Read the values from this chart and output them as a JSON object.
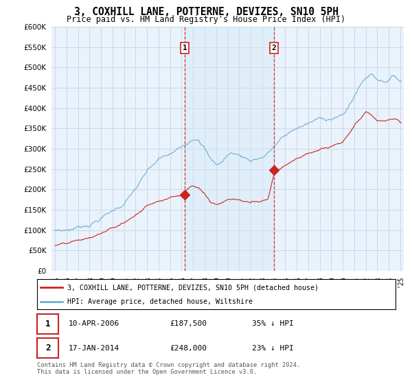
{
  "title": "3, COXHILL LANE, POTTERNE, DEVIZES, SN10 5PH",
  "subtitle": "Price paid vs. HM Land Registry's House Price Index (HPI)",
  "legend_line1": "3, COXHILL LANE, POTTERNE, DEVIZES, SN10 5PH (detached house)",
  "legend_line2": "HPI: Average price, detached house, Wiltshire",
  "sale1_date": "10-APR-2006",
  "sale1_price": "£187,500",
  "sale1_hpi": "35% ↓ HPI",
  "sale1_year": 2006.27,
  "sale1_value": 187500,
  "sale2_date": "17-JAN-2014",
  "sale2_price": "£248,000",
  "sale2_hpi": "23% ↓ HPI",
  "sale2_year": 2014.04,
  "sale2_value": 248000,
  "footer": "Contains HM Land Registry data © Crown copyright and database right 2024.\nThis data is licensed under the Open Government Licence v3.0.",
  "hpi_color": "#6baed6",
  "price_color": "#cc2222",
  "background_color": "#ffffff",
  "plot_bg_color": "#eaf2fb",
  "shade_color": "#d0e8f8",
  "vline_color": "#cc2222",
  "grid_color": "#c8d8e8",
  "ylim": [
    0,
    600000
  ],
  "xlim_start": 1995,
  "xlim_end": 2025
}
